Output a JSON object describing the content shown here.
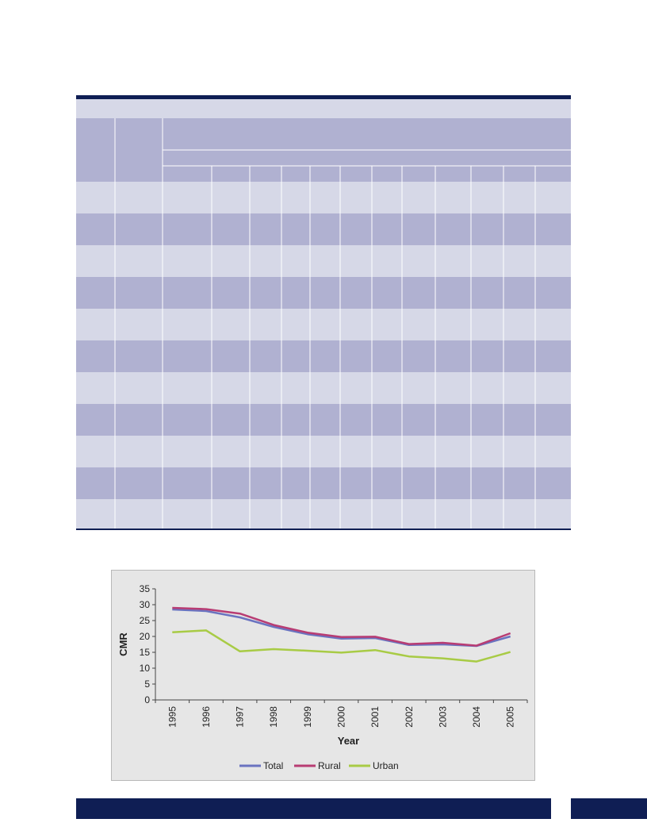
{
  "colors": {
    "navy": "#0f1e54",
    "table_light": "#d6d8e7",
    "table_dark": "#b0b1d1",
    "chart_bg": "#e6e6e6",
    "total": "#6a73c0",
    "rural": "#b83c73",
    "urban": "#a8cb45"
  },
  "table": {
    "row_count": 11,
    "year_columns": 12
  },
  "chart_data": {
    "type": "line",
    "categories": [
      "1995",
      "1996",
      "1997",
      "1998",
      "1999",
      "2000",
      "2001",
      "2002",
      "2003",
      "2004",
      "2005"
    ],
    "series": [
      {
        "name": "Total",
        "color": "#6a73c0",
        "values": [
          28.5,
          28.0,
          26.0,
          23.0,
          20.7,
          19.3,
          19.5,
          17.3,
          17.5,
          17.0,
          20.0
        ]
      },
      {
        "name": "Rural",
        "color": "#b83c73",
        "values": [
          29.0,
          28.6,
          27.2,
          23.6,
          21.2,
          19.8,
          19.9,
          17.6,
          18.0,
          17.1,
          21.0
        ]
      },
      {
        "name": "Urban",
        "color": "#a8cb45",
        "values": [
          21.3,
          21.9,
          15.3,
          16.0,
          15.5,
          14.9,
          15.7,
          13.7,
          13.1,
          12.1,
          15.1
        ]
      }
    ],
    "xlabel": "Year",
    "ylabel": "CMR",
    "ylim": [
      0,
      35
    ],
    "yticks": [
      "0",
      "5",
      "10",
      "15",
      "20",
      "25",
      "30",
      "35"
    ],
    "grid": false,
    "legend": "bottom"
  }
}
